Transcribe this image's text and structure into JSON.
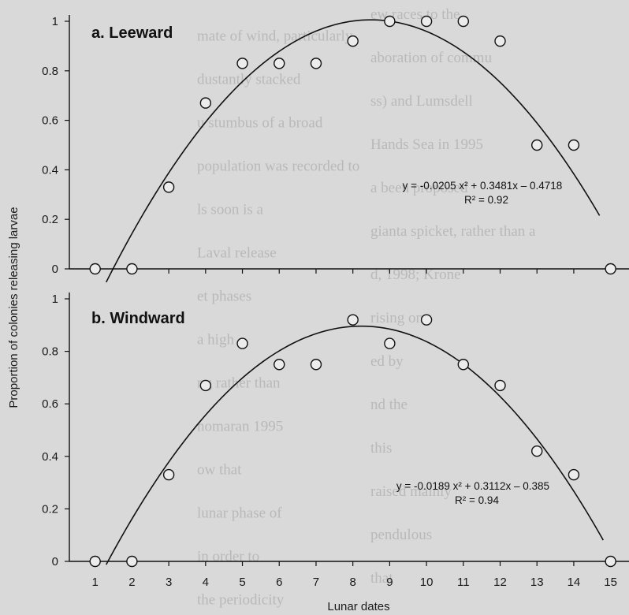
{
  "chart_data": {
    "type": "scatter",
    "ylabel": "Proportion of colonies releasing larvae",
    "xlabel": "Lunar dates",
    "x_categories": [
      1,
      2,
      3,
      4,
      5,
      6,
      7,
      8,
      9,
      10,
      11,
      12,
      13,
      14,
      15
    ],
    "xlim": [
      0.3,
      15.5
    ],
    "ylim": [
      0,
      1
    ],
    "y_ticks": [
      "0",
      "0.2",
      "0.4",
      "0.6",
      "0.8",
      "1"
    ],
    "panels": [
      {
        "title": "a. Leeward",
        "x": [
          1,
          2,
          3,
          4,
          5,
          6,
          7,
          8,
          9,
          10,
          11,
          12,
          13,
          14,
          15
        ],
        "y": [
          0,
          0,
          0.33,
          0.67,
          0.83,
          0.83,
          0.83,
          0.92,
          1.0,
          1.0,
          1.0,
          0.92,
          0.5,
          0.5,
          0
        ],
        "fit": {
          "a": -0.0205,
          "b": 0.3481,
          "c": -0.4718,
          "x_from": 1.3,
          "x_to": 14.7
        },
        "equation": "y = -0.0205 x² + 0.3481x – 0.4718",
        "r_squared": "R² = 0.92"
      },
      {
        "title": "b. Windward",
        "x": [
          1,
          2,
          3,
          4,
          5,
          6,
          7,
          8,
          9,
          10,
          11,
          12,
          13,
          14,
          15
        ],
        "y": [
          0,
          0,
          0.33,
          0.67,
          0.83,
          0.75,
          0.75,
          0.92,
          0.83,
          0.92,
          0.75,
          0.67,
          0.42,
          0.33,
          0
        ],
        "fit": {
          "a": -0.0189,
          "b": 0.3112,
          "c": -0.385,
          "x_from": 1.3,
          "x_to": 14.8
        },
        "equation": "y = -0.0189 x² + 0.3112x – 0.385",
        "r_squared": "R² = 0.94"
      }
    ]
  },
  "background_text": [
    "ew races to the",
    "mate of wind, particularly",
    "aboration of commu",
    "dustantly stacked",
    "ss) and Lumsdell",
    "u stumbus of a broad",
    "Hands Sea in 1995",
    "population was recorded to",
    "a been proposed",
    "ls soon is a",
    "gianta spicket, rather than a",
    "Laval release",
    "d, 1998; Krone",
    "et phases",
    "rising one",
    "a high",
    "ed by",
    "ng rather than",
    "nd the",
    "nomaran 1995",
    "this",
    "ow that",
    "raised mainly",
    "lunar phase of",
    "pendulous",
    "in order to",
    "that",
    "the periodicity"
  ]
}
